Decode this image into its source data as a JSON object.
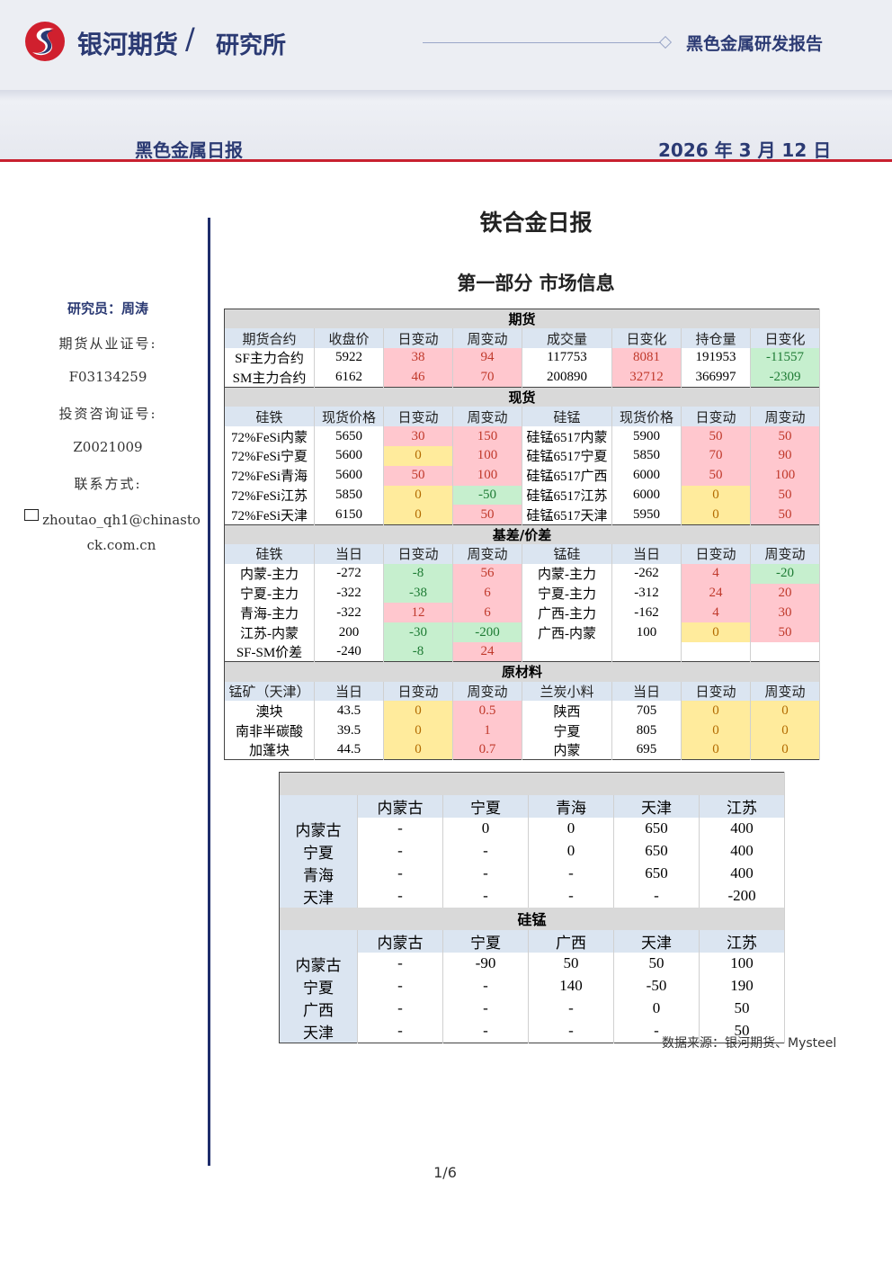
{
  "header": {
    "brand": "银河期货",
    "separator": "/",
    "dept": "研究所",
    "report_type": "黑色金属研发报告",
    "series": "黑色金属日报",
    "date": "2026 年 3 月 12 日"
  },
  "sidebar": {
    "researcher": "研究员：周涛",
    "license_label": "期货从业证号:",
    "license": "F03134259",
    "consult_label": "投资咨询证号:",
    "consult": "Z0021009",
    "contact_label": "联系方式:",
    "email": "zhoutao_qh1@chinastock.com.cn"
  },
  "title": "铁合金日报",
  "section": "第一部分 市场信息",
  "styles": {
    "positive": {
      "bg": "#ffc7ce",
      "fg": "#c0392b"
    },
    "negative": {
      "bg": "#c6efce",
      "fg": "#1e7b34"
    },
    "zero": {
      "bg": "#ffeb9c",
      "fg": "#b36b00"
    }
  },
  "table1": {
    "sections": [
      {
        "title": "期货",
        "header": [
          "期货合约",
          "收盘价",
          "日变动",
          "周变动",
          "成交量",
          "日变化",
          "持仓量",
          "日变化"
        ],
        "change_columns": [
          2,
          3,
          5,
          7
        ],
        "rows": [
          [
            "SF主力合约",
            5922,
            38,
            94,
            117753,
            8081,
            191953,
            -11557
          ],
          [
            "SM主力合约",
            6162,
            46,
            70,
            200890,
            32712,
            366997,
            -2309
          ]
        ]
      },
      {
        "title": "现货",
        "header": [
          "硅铁",
          "现货价格",
          "日变动",
          "周变动",
          "硅锰",
          "现货价格",
          "日变动",
          "周变动"
        ],
        "change_columns": [
          2,
          3,
          6,
          7
        ],
        "rows": [
          [
            "72%FeSi内蒙",
            5650,
            30,
            150,
            "硅锰6517内蒙",
            5900,
            50,
            50
          ],
          [
            "72%FeSi宁夏",
            5600,
            0,
            100,
            "硅锰6517宁夏",
            5850,
            70,
            90
          ],
          [
            "72%FeSi青海",
            5600,
            50,
            100,
            "硅锰6517广西",
            6000,
            50,
            100
          ],
          [
            "72%FeSi江苏",
            5850,
            0,
            -50,
            "硅锰6517江苏",
            6000,
            0,
            50
          ],
          [
            "72%FeSi天津",
            6150,
            0,
            50,
            "硅锰6517天津",
            5950,
            0,
            50
          ]
        ]
      },
      {
        "title": "基差/价差",
        "header": [
          "硅铁",
          "当日",
          "日变动",
          "周变动",
          "锰硅",
          "当日",
          "日变动",
          "周变动"
        ],
        "change_columns": [
          2,
          3,
          6,
          7
        ],
        "rows": [
          [
            "内蒙-主力",
            -272,
            -8,
            56,
            "内蒙-主力",
            -262,
            4,
            -20
          ],
          [
            "宁夏-主力",
            -322,
            -38,
            6,
            "宁夏-主力",
            -312,
            24,
            20
          ],
          [
            "青海-主力",
            -322,
            12,
            6,
            "广西-主力",
            -162,
            4,
            30
          ],
          [
            "江苏-内蒙",
            200,
            -30,
            -200,
            "广西-内蒙",
            100,
            0,
            50
          ],
          [
            "SF-SM价差",
            -240,
            -8,
            24
          ]
        ]
      },
      {
        "title": "原材料",
        "header": [
          "锰矿（天津）",
          "当日",
          "日变动",
          "周变动",
          "兰炭小料",
          "当日",
          "日变动",
          "周变动"
        ],
        "change_columns": [
          2,
          3,
          6,
          7
        ],
        "rows": [
          [
            "澳块",
            43.5,
            0,
            0.5,
            "陕西",
            705,
            0,
            0
          ],
          [
            "南非半碳酸",
            39.5,
            0,
            1,
            "宁夏",
            805,
            0,
            0
          ],
          [
            "加蓬块",
            44.5,
            0,
            0.7,
            "内蒙",
            695,
            0,
            0
          ]
        ]
      }
    ]
  },
  "table2": {
    "sections": [
      {
        "header": [
          "内蒙古",
          "宁夏",
          "青海",
          "天津",
          "江苏"
        ],
        "rows": [
          [
            "内蒙古",
            "-",
            0,
            0,
            650,
            400
          ],
          [
            "宁夏",
            "-",
            "-",
            0,
            650,
            400
          ],
          [
            "青海",
            "-",
            "-",
            "-",
            650,
            400
          ],
          [
            "天津",
            "-",
            "-",
            "-",
            "-",
            -200
          ]
        ]
      },
      {
        "title": "硅锰",
        "header": [
          "内蒙古",
          "宁夏",
          "广西",
          "天津",
          "江苏"
        ],
        "rows": [
          [
            "内蒙古",
            "-",
            -90,
            50,
            50,
            100
          ],
          [
            "宁夏",
            "-",
            "-",
            140,
            -50,
            190
          ],
          [
            "广西",
            "-",
            "-",
            "-",
            0,
            50
          ],
          [
            "天津",
            "-",
            "-",
            "-",
            "-",
            50
          ]
        ]
      }
    ]
  },
  "footer": {
    "source": "数据来源：银河期货、Mysteel",
    "page": "1/6"
  }
}
